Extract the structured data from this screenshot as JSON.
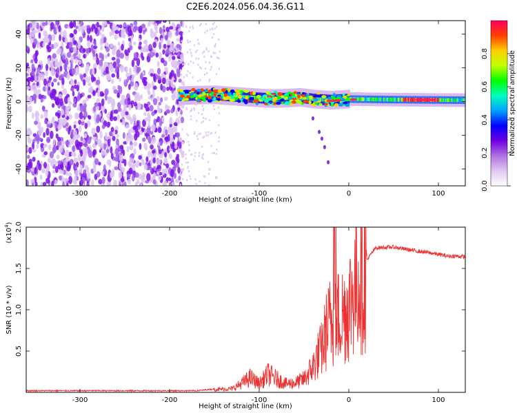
{
  "figure": {
    "title": "C2E6.2024.056.04.36.G11"
  },
  "chart_data": [
    {
      "type": "heatmap",
      "title": "C2E6.2024.056.04.36.G11",
      "xlabel": "Height of straight line (km)",
      "ylabel": "Frequency (Hz)",
      "xlim": [
        -360,
        130
      ],
      "ylim": [
        -50,
        48
      ],
      "xticks": [
        -300,
        -200,
        -100,
        0,
        100
      ],
      "yticks": [
        -40,
        -20,
        0,
        20,
        40
      ],
      "colorbar": {
        "label": "Normalized spectral amplitude",
        "range": [
          0,
          1
        ],
        "ticks": [
          0.0,
          0.2,
          0.4,
          0.6,
          0.8
        ],
        "colormap": [
          "#ffffff",
          "#e0c8f0",
          "#b070e0",
          "#7000e0",
          "#0000ff",
          "#00a0ff",
          "#00ffc0",
          "#00ff00",
          "#c0ff00",
          "#ffd000",
          "#ff4000",
          "#ff0060"
        ]
      },
      "features": {
        "noise_region_x": [
          -360,
          -190
        ],
        "sparse_region_x": [
          -190,
          -145
        ],
        "signal_band": [
          {
            "x": -190,
            "f": 3.5
          },
          {
            "x": -170,
            "f": 3.8
          },
          {
            "x": -150,
            "f": 4.0
          },
          {
            "x": -130,
            "f": 3.2
          },
          {
            "x": -110,
            "f": 2.5
          },
          {
            "x": -90,
            "f": 1.8
          },
          {
            "x": -70,
            "f": 2.0
          },
          {
            "x": -55,
            "f": 2.5
          },
          {
            "x": -40,
            "f": 1.5
          },
          {
            "x": -20,
            "f": 0.8
          },
          {
            "x": 0,
            "f": 1.5
          },
          {
            "x": 40,
            "f": 1.2
          },
          {
            "x": 80,
            "f": 1.0
          },
          {
            "x": 130,
            "f": 0.8
          }
        ],
        "tail_points": [
          {
            "x": -40,
            "f": -10
          },
          {
            "x": -33,
            "f": -18
          },
          {
            "x": -30,
            "f": -22
          },
          {
            "x": -27,
            "f": -27
          },
          {
            "x": -23,
            "f": -36
          }
        ]
      }
    },
    {
      "type": "line",
      "xlabel": "Height of straight line (km)",
      "ylabel": "SNR (10 * v/v)",
      "yscale_label": "(x10",
      "yscale_exp": "4",
      "yscale_close": ")",
      "xlim": [
        -360,
        130
      ],
      "ylim": [
        0,
        2.0
      ],
      "xticks": [
        -300,
        -200,
        -100,
        0,
        100
      ],
      "yticks": [
        0.5,
        1.0,
        1.5,
        2.0
      ],
      "ytick_labels": [
        "0.5",
        "1.0",
        "1.5",
        "2.0"
      ],
      "color": "#ee3030",
      "series": [
        {
          "x": [
            -360,
            -300,
            -250,
            -200,
            -170,
            -150,
            -130,
            -120,
            -110,
            -100,
            -90,
            -80,
            -70,
            -60,
            -50,
            -40,
            -35,
            -30,
            -25,
            -20,
            -15,
            -10,
            -5,
            0,
            5,
            10,
            20,
            30,
            50,
            70,
            90,
            100,
            110,
            120,
            130
          ],
          "y": [
            0.02,
            0.02,
            0.02,
            0.02,
            0.02,
            0.04,
            0.05,
            0.12,
            0.2,
            0.12,
            0.25,
            0.18,
            0.12,
            0.13,
            0.18,
            0.35,
            0.5,
            0.6,
            0.85,
            1.0,
            1.0,
            1.05,
            1.1,
            1.2,
            1.4,
            1.55,
            1.6,
            1.75,
            1.76,
            1.72,
            1.69,
            1.67,
            1.65,
            1.65,
            1.64
          ]
        }
      ]
    }
  ]
}
